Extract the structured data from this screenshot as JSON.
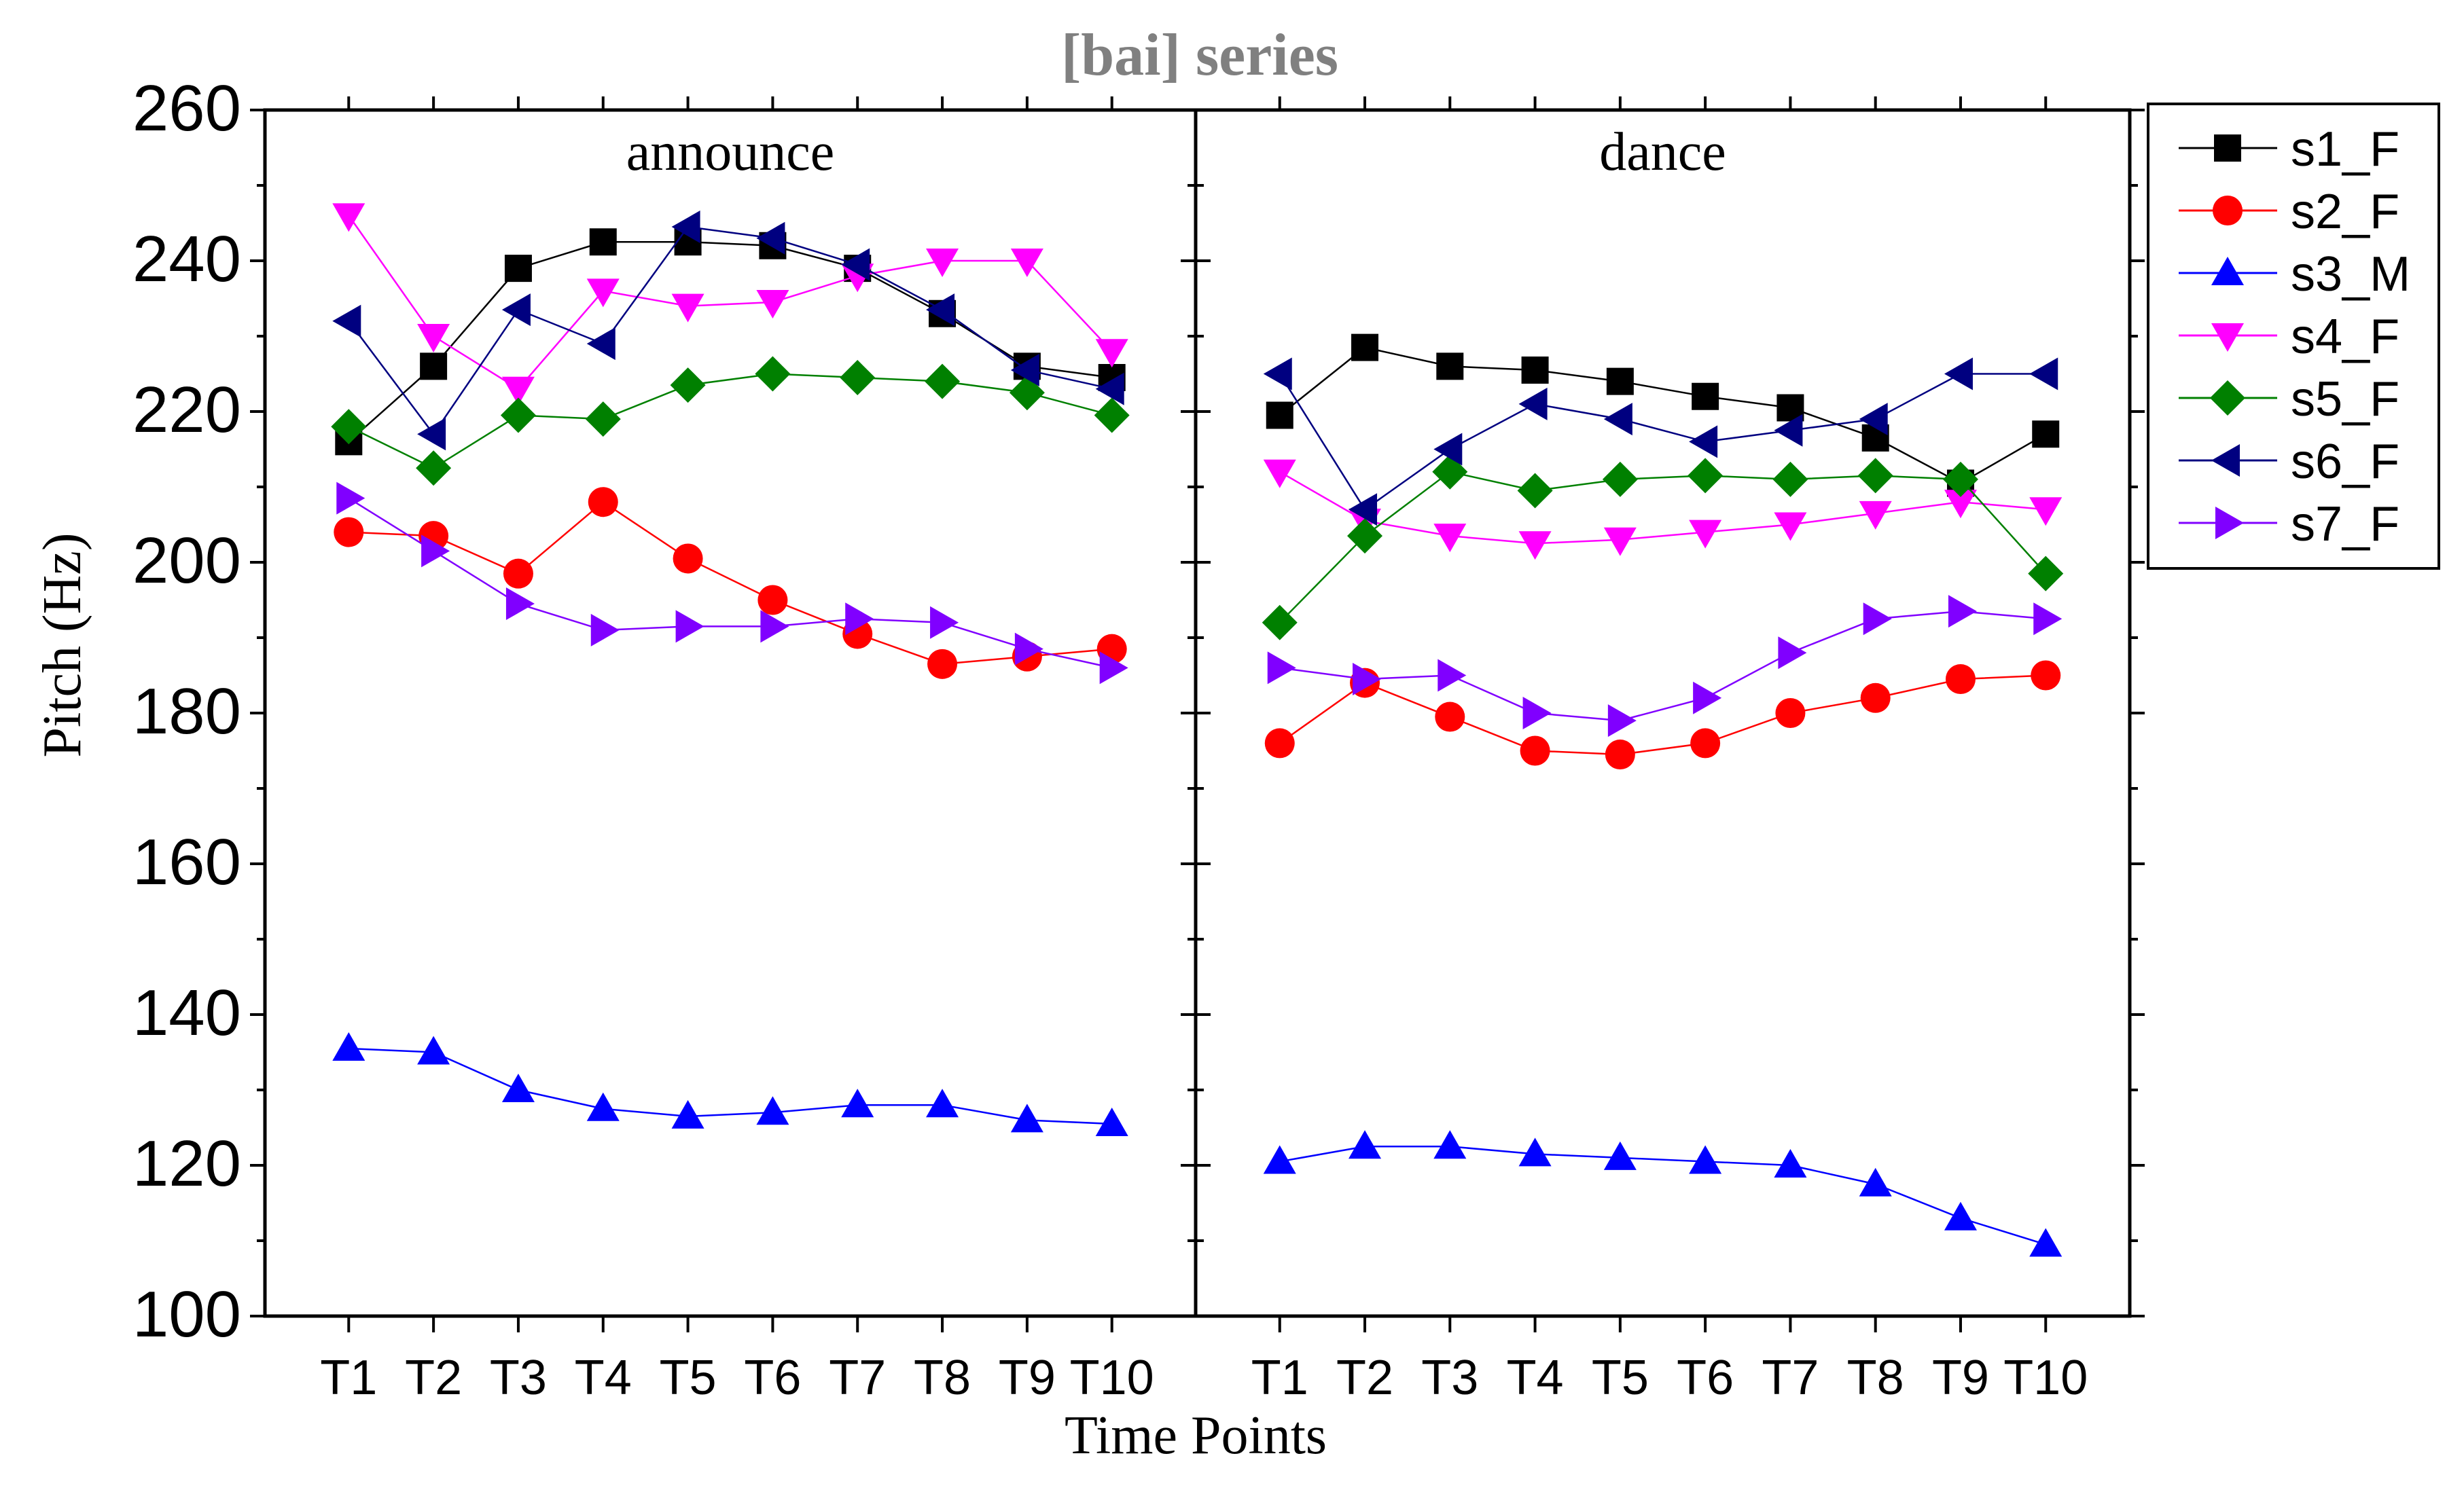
{
  "chart_data": {
    "type": "line",
    "title": "[bai] series",
    "xlabel": "Time Points",
    "ylabel": "Pitch (Hz)",
    "ylim": [
      100,
      260
    ],
    "yticks": [
      "100",
      "120",
      "140",
      "160",
      "180",
      "200",
      "220",
      "240",
      "260"
    ],
    "categories": [
      "T1",
      "T2",
      "T3",
      "T4",
      "T5",
      "T6",
      "T7",
      "T8",
      "T9",
      "T10"
    ],
    "legend_position": "outside-right",
    "series": [
      {
        "name": "s1_F",
        "color": "#000000",
        "marker": "square"
      },
      {
        "name": "s2_F",
        "color": "#ff0000",
        "marker": "circle"
      },
      {
        "name": "s3_M",
        "color": "#0000ff",
        "marker": "triangle-up"
      },
      {
        "name": "s4_F",
        "color": "#ff00ff",
        "marker": "triangle-down"
      },
      {
        "name": "s5_F",
        "color": "#008000",
        "marker": "diamond"
      },
      {
        "name": "s6_F",
        "color": "#000080",
        "marker": "triangle-left"
      },
      {
        "name": "s7_F",
        "color": "#8000ff",
        "marker": "triangle-right"
      }
    ],
    "panels": [
      {
        "label": "announce",
        "values": {
          "s1_F": [
            216,
            226,
            239,
            242.5,
            242.5,
            242,
            239,
            233,
            226,
            224.5
          ],
          "s2_F": [
            204,
            203.5,
            198.5,
            208,
            200.5,
            195,
            190.5,
            186.5,
            187.5,
            188.5
          ],
          "s3_M": [
            135.5,
            135,
            130,
            127.5,
            126.5,
            127,
            128,
            128,
            126,
            125.5
          ],
          "s4_F": [
            246,
            230,
            223,
            236,
            234,
            234.5,
            238,
            240,
            240,
            228
          ],
          "s5_F": [
            218,
            212.5,
            219.5,
            219,
            223.5,
            225,
            224.5,
            224,
            222.5,
            219.5
          ],
          "s6_F": [
            232,
            217,
            233.5,
            229,
            244.5,
            243,
            239.5,
            233.5,
            225.5,
            223
          ],
          "s7_F": [
            208.5,
            201.5,
            194.5,
            191,
            191.5,
            191.5,
            192.5,
            192,
            188.5,
            186
          ]
        }
      },
      {
        "label": "dance",
        "values": {
          "s1_F": [
            219.5,
            228.5,
            226,
            225.5,
            224,
            222,
            220.5,
            216.5,
            210.5,
            217
          ],
          "s2_F": [
            176,
            184,
            179.5,
            175,
            174.5,
            176,
            180,
            182,
            184.5,
            185
          ],
          "s3_M": [
            120.5,
            122.5,
            122.5,
            121.5,
            121,
            120.5,
            120,
            117.5,
            113,
            109.5
          ],
          "s4_F": [
            212,
            205.5,
            203.5,
            202.5,
            203,
            204,
            205,
            206.5,
            208,
            207
          ],
          "s5_F": [
            192,
            203.5,
            212,
            209.5,
            211,
            211.5,
            211,
            211.5,
            211,
            198.5
          ],
          "s6_F": [
            225,
            207,
            215,
            221,
            219,
            216,
            217.5,
            219,
            225,
            225
          ],
          "s7_F": [
            186,
            184.5,
            185,
            180,
            179,
            182,
            188,
            192.5,
            193.5,
            192.5
          ]
        }
      }
    ]
  }
}
